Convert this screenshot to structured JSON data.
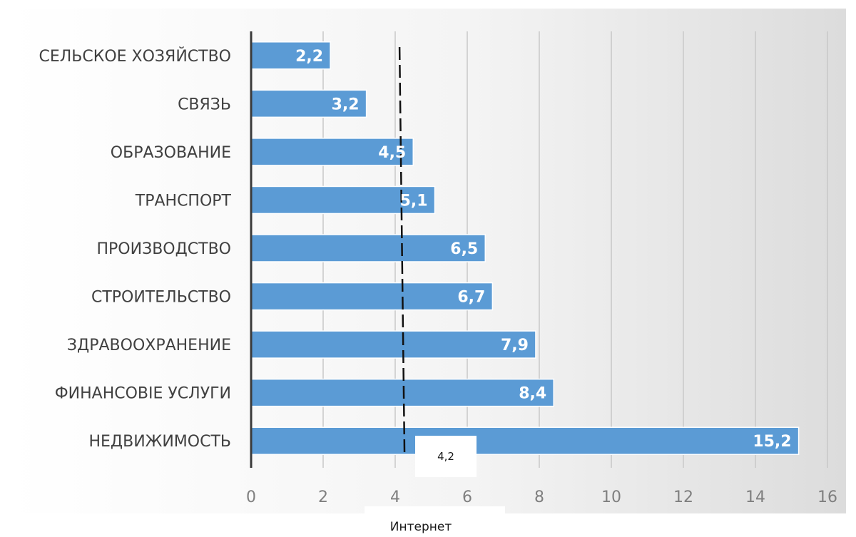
{
  "chart_data": {
    "type": "bar",
    "orientation": "horizontal",
    "categories": [
      "СЕЛЬСКОЕ ХОЗЯЙСТВО",
      "СВЯЗЬ",
      "ОБРАЗОВАНИЕ",
      "ТРАНСПОРТ",
      "ПРОИЗВОДСТВО",
      "СТРОИТЕЛЬСТВО",
      "ЗДРАВООХРАНЕНИЕ",
      "ФИНАНСОВІЕ УСЛУГИ",
      "НЕДВИЖИМОСТЬ"
    ],
    "values": [
      2.2,
      3.2,
      4.5,
      5.1,
      6.5,
      6.7,
      7.9,
      8.4,
      15.2
    ],
    "data_labels": [
      "2,2",
      "3,2",
      "4,5",
      "5,1",
      "6,5",
      "6,7",
      "7,9",
      "8,4",
      "15,2"
    ],
    "xlim": [
      0,
      16
    ],
    "x_ticks": [
      0,
      2,
      4,
      6,
      8,
      10,
      12,
      14,
      16
    ],
    "x_tick_labels": [
      "0",
      "2",
      "4",
      "6",
      "8",
      "10",
      "12",
      "14",
      "16"
    ],
    "grid": "vertical",
    "bar_color": "#5b9bd5",
    "reference_line": {
      "value": 4.2,
      "value_label": "4,2",
      "name": "Интернет",
      "style": "dashed",
      "color": "#111111"
    },
    "title": "",
    "xlabel": "",
    "ylabel": ""
  }
}
